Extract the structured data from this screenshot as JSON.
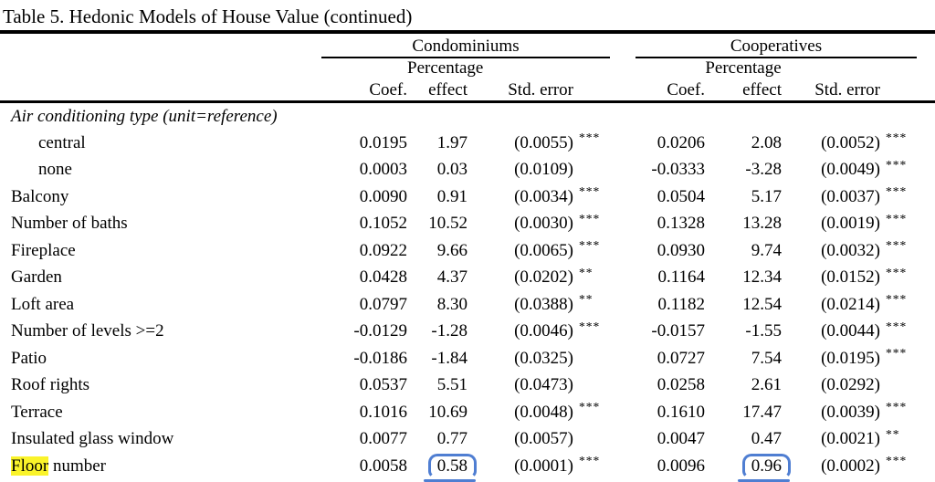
{
  "title": "Table 5. Hedonic Models of House Value (continued)",
  "header": {
    "group1": "Condominiums",
    "group2": "Cooperatives",
    "coef": "Coef.",
    "percentage": "Percentage",
    "effect": "effect",
    "std_error": "Std. error"
  },
  "section": {
    "label": "Air conditioning type (unit=reference)"
  },
  "rows": [
    {
      "label_parts": [
        {
          "text": "central",
          "highlight": false
        }
      ],
      "indent": true,
      "c": {
        "coef": "0.0195",
        "pct": "1.97",
        "se": "(0.0055)",
        "stars": "***",
        "pct_circled": false
      },
      "p": {
        "coef": "0.0206",
        "pct": "2.08",
        "se": "(0.0052)",
        "stars": "***",
        "pct_circled": false
      }
    },
    {
      "label_parts": [
        {
          "text": "none",
          "highlight": false
        }
      ],
      "indent": true,
      "c": {
        "coef": "0.0003",
        "pct": "0.03",
        "se": "(0.0109)",
        "stars": "",
        "pct_circled": false
      },
      "p": {
        "coef": "-0.0333",
        "pct": "-3.28",
        "se": "(0.0049)",
        "stars": "***",
        "pct_circled": false
      }
    },
    {
      "label_parts": [
        {
          "text": "Balcony",
          "highlight": false
        }
      ],
      "indent": false,
      "c": {
        "coef": "0.0090",
        "pct": "0.91",
        "se": "(0.0034)",
        "stars": "***",
        "pct_circled": false
      },
      "p": {
        "coef": "0.0504",
        "pct": "5.17",
        "se": "(0.0037)",
        "stars": "***",
        "pct_circled": false
      }
    },
    {
      "label_parts": [
        {
          "text": "Number of baths",
          "highlight": false
        }
      ],
      "indent": false,
      "c": {
        "coef": "0.1052",
        "pct": "10.52",
        "se": "(0.0030)",
        "stars": "***",
        "pct_circled": false
      },
      "p": {
        "coef": "0.1328",
        "pct": "13.28",
        "se": "(0.0019)",
        "stars": "***",
        "pct_circled": false
      }
    },
    {
      "label_parts": [
        {
          "text": "Fireplace",
          "highlight": false
        }
      ],
      "indent": false,
      "c": {
        "coef": "0.0922",
        "pct": "9.66",
        "se": "(0.0065)",
        "stars": "***",
        "pct_circled": false
      },
      "p": {
        "coef": "0.0930",
        "pct": "9.74",
        "se": "(0.0032)",
        "stars": "***",
        "pct_circled": false
      }
    },
    {
      "label_parts": [
        {
          "text": "Garden",
          "highlight": false
        }
      ],
      "indent": false,
      "c": {
        "coef": "0.0428",
        "pct": "4.37",
        "se": "(0.0202)",
        "stars": "**",
        "pct_circled": false
      },
      "p": {
        "coef": "0.1164",
        "pct": "12.34",
        "se": "(0.0152)",
        "stars": "***",
        "pct_circled": false
      }
    },
    {
      "label_parts": [
        {
          "text": "Loft area",
          "highlight": false
        }
      ],
      "indent": false,
      "c": {
        "coef": "0.0797",
        "pct": "8.30",
        "se": "(0.0388)",
        "stars": "**",
        "pct_circled": false
      },
      "p": {
        "coef": "0.1182",
        "pct": "12.54",
        "se": "(0.0214)",
        "stars": "***",
        "pct_circled": false
      }
    },
    {
      "label_parts": [
        {
          "text": "Number of levels >=2",
          "highlight": false
        }
      ],
      "indent": false,
      "c": {
        "coef": "-0.0129",
        "pct": "-1.28",
        "se": "(0.0046)",
        "stars": "***",
        "pct_circled": false
      },
      "p": {
        "coef": "-0.0157",
        "pct": "-1.55",
        "se": "(0.0044)",
        "stars": "***",
        "pct_circled": false
      }
    },
    {
      "label_parts": [
        {
          "text": "Patio",
          "highlight": false
        }
      ],
      "indent": false,
      "c": {
        "coef": "-0.0186",
        "pct": "-1.84",
        "se": "(0.0325)",
        "stars": "",
        "pct_circled": false
      },
      "p": {
        "coef": "0.0727",
        "pct": "7.54",
        "se": "(0.0195)",
        "stars": "***",
        "pct_circled": false
      }
    },
    {
      "label_parts": [
        {
          "text": "Roof rights",
          "highlight": false
        }
      ],
      "indent": false,
      "c": {
        "coef": "0.0537",
        "pct": "5.51",
        "se": "(0.0473)",
        "stars": "",
        "pct_circled": false
      },
      "p": {
        "coef": "0.0258",
        "pct": "2.61",
        "se": "(0.0292)",
        "stars": "",
        "pct_circled": false
      }
    },
    {
      "label_parts": [
        {
          "text": "Terrace",
          "highlight": false
        }
      ],
      "indent": false,
      "c": {
        "coef": "0.1016",
        "pct": "10.69",
        "se": "(0.0048)",
        "stars": "***",
        "pct_circled": false
      },
      "p": {
        "coef": "0.1610",
        "pct": "17.47",
        "se": "(0.0039)",
        "stars": "***",
        "pct_circled": false
      }
    },
    {
      "label_parts": [
        {
          "text": "Insulated glass window",
          "highlight": false
        }
      ],
      "indent": false,
      "c": {
        "coef": "0.0077",
        "pct": "0.77",
        "se": "(0.0057)",
        "stars": "",
        "pct_circled": false
      },
      "p": {
        "coef": "0.0047",
        "pct": "0.47",
        "se": "(0.0021)",
        "stars": "**",
        "pct_circled": false
      }
    },
    {
      "label_parts": [
        {
          "text": "Floor",
          "highlight": true
        },
        {
          "text": " number",
          "highlight": false
        }
      ],
      "indent": false,
      "c": {
        "coef": "0.0058",
        "pct": "0.58",
        "se": "(0.0001)",
        "stars": "***",
        "pct_circled": true
      },
      "p": {
        "coef": "0.0096",
        "pct": "0.96",
        "se": "(0.0002)",
        "stars": "***",
        "pct_circled": true
      }
    }
  ],
  "annotations": {
    "highlight_color": "#faf32a",
    "circle_color": "#4f7ed2"
  }
}
